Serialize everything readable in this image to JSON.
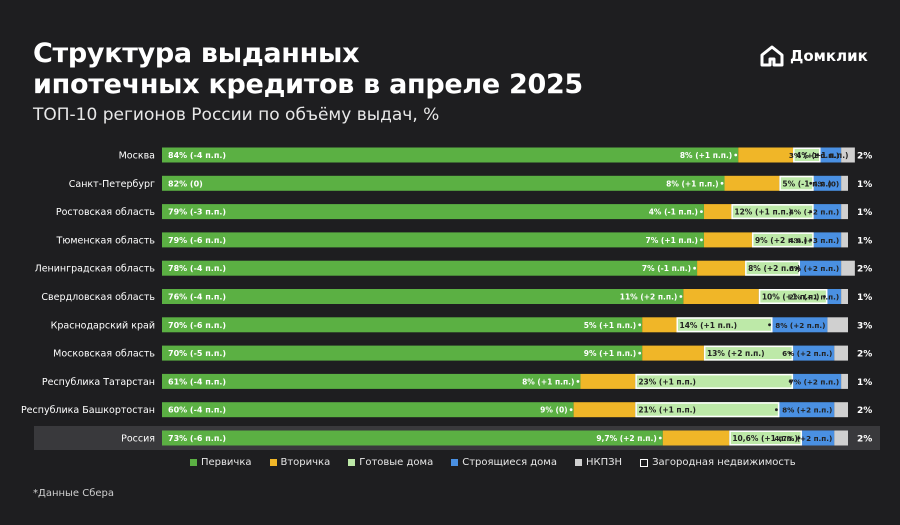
{
  "header": {
    "title_line1": "Структура выданных",
    "title_line2": "ипотечных кредитов в апреле 2025",
    "subtitle": "ТОП-10 регионов России по объёму выдач, %"
  },
  "brand": {
    "name": "Домклик",
    "icon": "domclick-house-logo-icon"
  },
  "footnote": "*Данные Сбера",
  "colors": {
    "primary": "#5bb043",
    "secondary": "#f0b628",
    "ready": "#bde9a8",
    "construction": "#4a90e2",
    "nkpzn": "#d0d0d0",
    "country": "#ffffff",
    "highlight_row": "#39393c"
  },
  "chart_data": {
    "type": "bar",
    "orientation": "horizontal",
    "stacked": true,
    "xlim": [
      0,
      100
    ],
    "legend_position": "bottom",
    "legend": [
      {
        "key": "primary",
        "label": "Первичка"
      },
      {
        "key": "secondary",
        "label": "Вторичка"
      },
      {
        "key": "ready",
        "label": "Готовые дома"
      },
      {
        "key": "construction",
        "label": "Строящиеся дома"
      },
      {
        "key": "nkpzn",
        "label": "НКПЗН"
      },
      {
        "key": "country",
        "label": "Загородная недвижимость"
      }
    ],
    "rows": [
      {
        "region": "Москва",
        "highlight": false,
        "primary": 84,
        "primary_label": "84% (-4 п.п.)",
        "secondary": 8,
        "secondary_label": "8% (+1 п.п.)",
        "ready": 4,
        "ready_label": "4% (+1 п.п.)",
        "construction": 3,
        "construction_label": "3% (+1 п.п.)",
        "nkpzn": 2,
        "nkpzn_label": "2%"
      },
      {
        "region": "Санкт-Петербург",
        "highlight": false,
        "primary": 82,
        "primary_label": "82% (0)",
        "secondary": 8,
        "secondary_label": "8% (+1 п.п.)",
        "ready": 5,
        "ready_label": "5% (-1 п.п.)",
        "construction": 4,
        "construction_label": "4% (0)",
        "nkpzn": 1,
        "nkpzn_label": "1%"
      },
      {
        "region": "Ростовская область",
        "highlight": false,
        "primary": 79,
        "primary_label": "79% (-3 п.п.)",
        "secondary": 4,
        "secondary_label": "4% (-1 п.п.)",
        "ready": 12,
        "ready_label": "12% (+1 п.п.)",
        "construction": 4,
        "construction_label": "4% (+2 п.п.)",
        "nkpzn": 1,
        "nkpzn_label": "1%"
      },
      {
        "region": "Тюменская область",
        "highlight": false,
        "primary": 79,
        "primary_label": "79% (-6 п.п.)",
        "secondary": 7,
        "secondary_label": "7% (+1 п.п.)",
        "ready": 9,
        "ready_label": "9% (+2 п.п.)",
        "construction": 4,
        "construction_label": "4% (+3 п.п.)",
        "nkpzn": 1,
        "nkpzn_label": "1%"
      },
      {
        "region": "Ленинградская область",
        "highlight": false,
        "primary": 78,
        "primary_label": "78% (-4 п.п.)",
        "secondary": 7,
        "secondary_label": "7% (-1 п.п.)",
        "ready": 8,
        "ready_label": "8% (+2 п.п.)",
        "construction": 6,
        "construction_label": "6% (+2 п.п.)",
        "nkpzn": 2,
        "nkpzn_label": "2%"
      },
      {
        "region": "Свердловская область",
        "highlight": false,
        "primary": 76,
        "primary_label": "76% (-4 п.п.)",
        "secondary": 11,
        "secondary_label": "11% (+2 п.п.)",
        "ready": 10,
        "ready_label": "10% (+1 п.п.)",
        "construction": 2,
        "construction_label": "2% (+1 п.п.)",
        "nkpzn": 1,
        "nkpzn_label": "1%"
      },
      {
        "region": "Краснодарский край",
        "highlight": false,
        "primary": 70,
        "primary_label": "70% (-6 п.п.)",
        "secondary": 5,
        "secondary_label": "5% (+1 п.п.)",
        "ready": 14,
        "ready_label": "14% (+1 п.п.)",
        "construction": 8,
        "construction_label": "8% (+2 п.п.)",
        "nkpzn": 3,
        "nkpzn_label": "3%"
      },
      {
        "region": "Московская область",
        "highlight": false,
        "primary": 70,
        "primary_label": "70% (-5 п.п.)",
        "secondary": 9,
        "secondary_label": "9% (+1 п.п.)",
        "ready": 13,
        "ready_label": "13% (+2 п.п.)",
        "construction": 6,
        "construction_label": "6% (+2 п.п.)",
        "nkpzn": 2,
        "nkpzn_label": "2%"
      },
      {
        "region": "Республика Татарстан",
        "highlight": false,
        "primary": 61,
        "primary_label": "61% (-4 п.п.)",
        "secondary": 8,
        "secondary_label": "8% (+1 п.п.)",
        "ready": 23,
        "ready_label": "23% (+1 п.п.)",
        "construction": 7,
        "construction_label": "7% (+2 п.п.)",
        "nkpzn": 1,
        "nkpzn_label": "1%"
      },
      {
        "region": "Республика Башкортостан",
        "highlight": false,
        "primary": 60,
        "primary_label": "60% (-4 п.п.)",
        "secondary": 9,
        "secondary_label": "9% (0)",
        "ready": 21,
        "ready_label": "21% (+1 п.п.)",
        "construction": 8,
        "construction_label": "8% (+2 п.п.)",
        "nkpzn": 2,
        "nkpzn_label": "2%"
      },
      {
        "region": "Россия",
        "highlight": true,
        "primary": 73,
        "primary_label": "73% (-6 п.п.)",
        "secondary": 9.7,
        "secondary_label": "9,7% (+2 п.п.)",
        "ready": 10.6,
        "ready_label": "10,6% (+1 п.п.)",
        "construction": 4.7,
        "construction_label": "4,7% (+2 п.п.)",
        "nkpzn": 2,
        "nkpzn_label": "2%"
      }
    ]
  }
}
